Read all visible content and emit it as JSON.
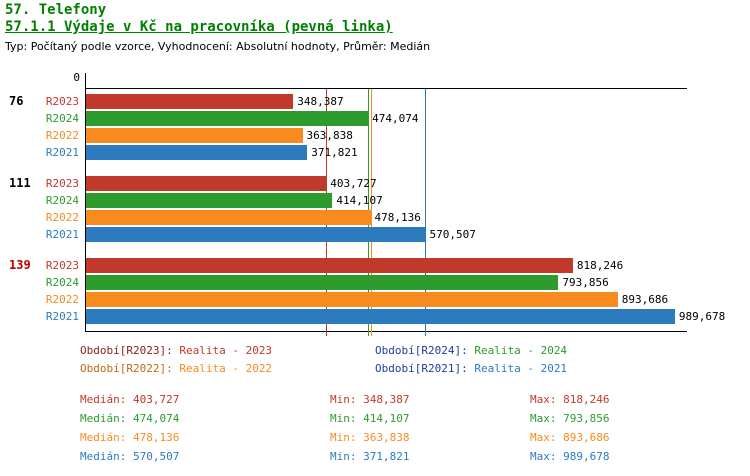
{
  "header": {
    "title": "57. Telefony",
    "subtitle": "57.1.1 Výdaje v Kč na pracovníka (pevná linka)",
    "meta": "Typ: Počítaný podle vzorce, Vyhodnocení: Absolutní hodnoty, Průměr: Medián",
    "title_color": "#008000"
  },
  "chart_data": {
    "type": "bar",
    "orientation": "horizontal",
    "title": "57. Telefony",
    "subtitle": "57.1.1 Výdaje v Kč na pracovníka (pevná linka)",
    "unit": "Kč na pracovníka",
    "xlim": [
      0,
      1010000
    ],
    "x_zero_label": "0",
    "grid": false,
    "series_colors": {
      "R2023": "#c0392b",
      "R2024": "#2d9b2d",
      "R2022": "#f78b1e",
      "R2021": "#2c7bbf"
    },
    "groups": [
      {
        "label": "76",
        "label_color": "#000000",
        "bars": [
          {
            "series": "R2023",
            "value": 348387,
            "value_label": "348,387"
          },
          {
            "series": "R2024",
            "value": 474074,
            "value_label": "474,074"
          },
          {
            "series": "R2022",
            "value": 363838,
            "value_label": "363,838"
          },
          {
            "series": "R2021",
            "value": 371821,
            "value_label": "371,821"
          }
        ]
      },
      {
        "label": "111",
        "label_color": "#000000",
        "bars": [
          {
            "series": "R2023",
            "value": 403727,
            "value_label": "403,727"
          },
          {
            "series": "R2024",
            "value": 414107,
            "value_label": "414,107"
          },
          {
            "series": "R2022",
            "value": 478136,
            "value_label": "478,136"
          },
          {
            "series": "R2021",
            "value": 570507,
            "value_label": "570,507"
          }
        ]
      },
      {
        "label": "139",
        "label_color": "#c00000",
        "bars": [
          {
            "series": "R2023",
            "value": 818246,
            "value_label": "818,246"
          },
          {
            "series": "R2024",
            "value": 793856,
            "value_label": "793,856"
          },
          {
            "series": "R2022",
            "value": 893686,
            "value_label": "893,686"
          },
          {
            "series": "R2021",
            "value": 989678,
            "value_label": "989,678"
          }
        ]
      }
    ],
    "medians": [
      {
        "series": "R2023",
        "value": 403727
      },
      {
        "series": "R2024",
        "value": 474074
      },
      {
        "series": "R2022",
        "value": 478136
      },
      {
        "series": "R2021",
        "value": 570507
      }
    ]
  },
  "legend": {
    "items": [
      {
        "prefix": "Období[R2023]:",
        "label": "Realita - 2023",
        "prefix_color": "#8b1e16",
        "color": "#c0392b"
      },
      {
        "prefix": "Období[R2024]:",
        "label": "Realita - 2024",
        "prefix_color": "#1f3d9e",
        "color": "#2d9b2d"
      },
      {
        "prefix": "Období[R2022]:",
        "label": "Realita - 2022",
        "prefix_color": "#c06a10",
        "color": "#f78b1e"
      },
      {
        "prefix": "Období[R2021]:",
        "label": "Realita - 2021",
        "prefix_color": "#1f3d9e",
        "color": "#2c7bbf"
      }
    ]
  },
  "stats": {
    "labels": {
      "median": "Medián:",
      "min": "Min:",
      "max": "Max:"
    },
    "rows": [
      {
        "series": "R2023",
        "color": "#c0392b",
        "median": "403,727",
        "min": "348,387",
        "max": "818,246"
      },
      {
        "series": "R2024",
        "color": "#2d9b2d",
        "median": "474,074",
        "min": "414,107",
        "max": "793,856"
      },
      {
        "series": "R2022",
        "color": "#f78b1e",
        "median": "478,136",
        "min": "363,838",
        "max": "893,686"
      },
      {
        "series": "R2021",
        "color": "#2c7bbf",
        "median": "570,507",
        "min": "371,821",
        "max": "989,678"
      }
    ]
  }
}
